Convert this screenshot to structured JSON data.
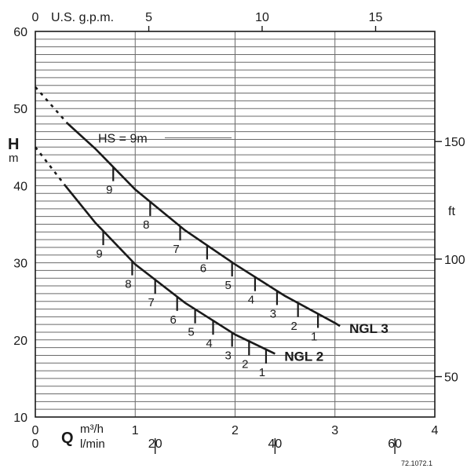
{
  "chart_data": {
    "type": "line",
    "ref_code": "72.1072.1",
    "axes": {
      "left": {
        "label": "H",
        "unit": "m",
        "range": [
          10,
          60
        ],
        "ticks": [
          "10",
          "20",
          "30",
          "40",
          "50",
          "60"
        ]
      },
      "right": {
        "unit": "ft",
        "ticks": [
          "50",
          "100",
          "150"
        ],
        "tick_values_m": [
          15.24,
          30.48,
          45.72
        ]
      },
      "bottom": {
        "label": "Q",
        "unit": "m³/h",
        "range": [
          0,
          4
        ],
        "ticks": [
          "0",
          "1",
          "2",
          "3",
          "4"
        ]
      },
      "bottom2": {
        "unit": "l/min",
        "ticks": [
          "0",
          "20",
          "40",
          "60"
        ],
        "tick_values_m3h": [
          0,
          1.2,
          2.4,
          3.6
        ]
      },
      "top": {
        "label": "U.S. g.p.m.",
        "ticks": [
          "0",
          "5",
          "10",
          "15"
        ],
        "tick_values_m3h": [
          0,
          1.136,
          2.271,
          3.407
        ]
      }
    },
    "grid": true,
    "series": [
      {
        "name": "NGL 3",
        "dashed": [
          [
            0.0,
            52.8
          ],
          [
            0.32,
            48.1
          ]
        ],
        "solid": [
          [
            0.32,
            48.1
          ],
          [
            0.6,
            44.8
          ],
          [
            1.0,
            39.5
          ],
          [
            1.5,
            34.2
          ],
          [
            2.0,
            29.8
          ],
          [
            2.5,
            25.7
          ],
          [
            3.0,
            22.2
          ],
          [
            3.05,
            21.8
          ]
        ],
        "stages": [
          {
            "label": "9",
            "x": 0.78
          },
          {
            "label": "8",
            "x": 1.15
          },
          {
            "label": "7",
            "x": 1.45
          },
          {
            "label": "6",
            "x": 1.72
          },
          {
            "label": "5",
            "x": 1.97
          },
          {
            "label": "4",
            "x": 2.2
          },
          {
            "label": "3",
            "x": 2.42
          },
          {
            "label": "2",
            "x": 2.63
          },
          {
            "label": "1",
            "x": 2.83
          }
        ],
        "annotation": "HS = 9m"
      },
      {
        "name": "NGL 2",
        "dashed": [
          [
            0.0,
            45.0
          ],
          [
            0.3,
            40.0
          ]
        ],
        "solid": [
          [
            0.3,
            40.0
          ],
          [
            0.6,
            35.2
          ],
          [
            1.0,
            29.8
          ],
          [
            1.5,
            24.8
          ],
          [
            2.0,
            20.7
          ],
          [
            2.4,
            18.2
          ]
        ],
        "stages": [
          {
            "label": "9",
            "x": 0.68
          },
          {
            "label": "8",
            "x": 0.97
          },
          {
            "label": "7",
            "x": 1.2
          },
          {
            "label": "6",
            "x": 1.42
          },
          {
            "label": "5",
            "x": 1.6
          },
          {
            "label": "4",
            "x": 1.78
          },
          {
            "label": "3",
            "x": 1.97
          },
          {
            "label": "2",
            "x": 2.14
          },
          {
            "label": "1",
            "x": 2.31
          }
        ]
      }
    ]
  }
}
